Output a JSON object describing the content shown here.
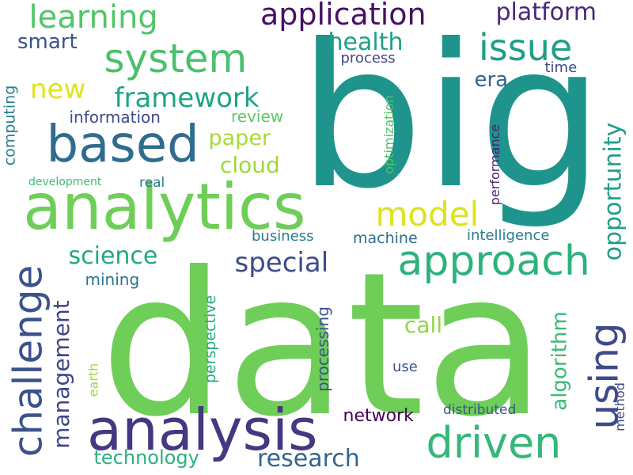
{
  "words": [
    {
      "text": "data",
      "color": "#6ece58",
      "vertical": false
    },
    {
      "text": "big",
      "color": "#1f948c",
      "vertical": false
    },
    {
      "text": "analytics",
      "color": "#6ece58",
      "vertical": false
    },
    {
      "text": "analysis",
      "color": "#453781",
      "vertical": false
    },
    {
      "text": "based",
      "color": "#2f6c8e",
      "vertical": false
    },
    {
      "text": "system",
      "color": "#4ac16d",
      "vertical": false
    },
    {
      "text": "approach",
      "color": "#2db27d",
      "vertical": false
    },
    {
      "text": "driven",
      "color": "#35b779",
      "vertical": false
    },
    {
      "text": "learning",
      "color": "#52c569",
      "vertical": false
    },
    {
      "text": "application",
      "color": "#471164",
      "vertical": false
    },
    {
      "text": "issue",
      "color": "#1f9e89",
      "vertical": false
    },
    {
      "text": "model",
      "color": "#dde318",
      "vertical": false
    },
    {
      "text": "challenge",
      "color": "#3b528b",
      "vertical": true
    },
    {
      "text": "using",
      "color": "#3e4a89",
      "vertical": true
    },
    {
      "text": "framework",
      "color": "#20a386",
      "vertical": false
    },
    {
      "text": "platform",
      "color": "#482878",
      "vertical": false
    },
    {
      "text": "research",
      "color": "#31668e",
      "vertical": false
    },
    {
      "text": "special",
      "color": "#3e4c8a",
      "vertical": false
    },
    {
      "text": "science",
      "color": "#22a785",
      "vertical": false
    },
    {
      "text": "opportunity",
      "color": "#1f9e89",
      "vertical": true
    },
    {
      "text": "new",
      "color": "#e2e418",
      "vertical": false
    },
    {
      "text": "health",
      "color": "#1fa188",
      "vertical": false
    },
    {
      "text": "cloud",
      "color": "#9bd93c",
      "vertical": false
    },
    {
      "text": "paper",
      "color": "#a5db36",
      "vertical": false
    },
    {
      "text": "management",
      "color": "#414487",
      "vertical": true
    },
    {
      "text": "smart",
      "color": "#3b528b",
      "vertical": false
    },
    {
      "text": "era",
      "color": "#33638d",
      "vertical": false
    },
    {
      "text": "call",
      "color": "#90d743",
      "vertical": false
    },
    {
      "text": "algorithm",
      "color": "#3aba76",
      "vertical": true
    },
    {
      "text": "technology",
      "color": "#2ab07f",
      "vertical": false
    },
    {
      "text": "network",
      "color": "#440154",
      "vertical": false
    },
    {
      "text": "processing",
      "color": "#3b528b",
      "vertical": true
    },
    {
      "text": "information",
      "color": "#3e4989",
      "vertical": false
    },
    {
      "text": "computing",
      "color": "#277f8e",
      "vertical": true
    },
    {
      "text": "review",
      "color": "#5ec962",
      "vertical": false
    },
    {
      "text": "mining",
      "color": "#2c728e",
      "vertical": false
    },
    {
      "text": "business",
      "color": "#2a788e",
      "vertical": false
    },
    {
      "text": "machine",
      "color": "#2e6e8e",
      "vertical": false
    },
    {
      "text": "intelligence",
      "color": "#287d8e",
      "vertical": false
    },
    {
      "text": "optimization",
      "color": "#4fc46a",
      "vertical": true
    },
    {
      "text": "performance",
      "color": "#482173",
      "vertical": true
    },
    {
      "text": "perspective",
      "color": "#26ad81",
      "vertical": true
    },
    {
      "text": "process",
      "color": "#404688",
      "vertical": false
    },
    {
      "text": "time",
      "color": "#3e4a89",
      "vertical": false
    },
    {
      "text": "development",
      "color": "#3fbc73",
      "vertical": false
    },
    {
      "text": "real",
      "color": "#287c8e",
      "vertical": false
    },
    {
      "text": "earth",
      "color": "#9fda3a",
      "vertical": true
    },
    {
      "text": "use",
      "color": "#3b528b",
      "vertical": false
    },
    {
      "text": "distributed",
      "color": "#39568c",
      "vertical": false
    },
    {
      "text": "method",
      "color": "#3d4d8a",
      "vertical": true
    }
  ]
}
